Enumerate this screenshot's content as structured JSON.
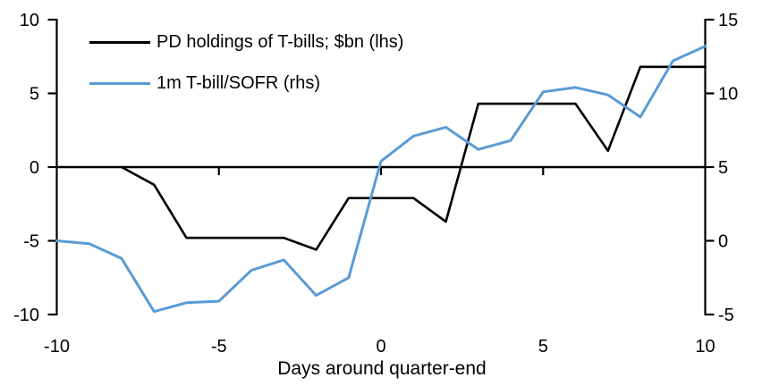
{
  "chart_data": {
    "type": "line",
    "title": "",
    "xlabel": "Days around quarter-end",
    "x": [
      -10,
      -9,
      -8,
      -7,
      -6,
      -5,
      -4,
      -3,
      -2,
      -1,
      0,
      1,
      2,
      3,
      4,
      5,
      6,
      7,
      8,
      9,
      10
    ],
    "x_tick_labels": [
      "-10",
      "-5",
      "0",
      "5",
      "10"
    ],
    "x_tick_values": [
      -10,
      -5,
      0,
      5,
      10
    ],
    "axes": {
      "left": {
        "ylim": [
          -10,
          10
        ],
        "tick_values": [
          10,
          5,
          0,
          -5,
          -10
        ],
        "tick_labels": [
          "10",
          "5",
          "0",
          "-5",
          "-10"
        ]
      },
      "right": {
        "ylim": [
          -5,
          15
        ],
        "tick_values": [
          15,
          10,
          5,
          0,
          -5
        ],
        "tick_labels": [
          "15",
          "10",
          "5",
          "0",
          "-5"
        ]
      }
    },
    "grid": false,
    "zero_line": true,
    "legend_position": "top-left",
    "series": [
      {
        "name": "PD holdings of T-bills; $bn (lhs)",
        "axis": "left",
        "color": "#000000",
        "values": [
          null,
          null,
          0,
          -1.2,
          -4.8,
          -4.8,
          -4.8,
          -4.8,
          -5.6,
          -2.1,
          -2.1,
          -2.1,
          -3.7,
          4.3,
          4.3,
          4.3,
          4.3,
          1.1,
          6.8,
          6.8,
          6.8
        ]
      },
      {
        "name": "1m T-bill/SOFR (rhs)",
        "axis": "right",
        "color": "#5B9BD5",
        "values": [
          0,
          -0.2,
          -1.2,
          -4.8,
          -4.2,
          -4.1,
          -2.0,
          -1.3,
          -3.7,
          -2.5,
          5.4,
          7.1,
          7.7,
          6.2,
          6.8,
          10.1,
          10.4,
          9.9,
          8.4,
          12.2,
          13.2
        ]
      }
    ]
  },
  "colors": {
    "background": "#ffffff",
    "axis": "#000000",
    "text": "#000000",
    "series_blue": "#5B9BD5",
    "series_black": "#000000"
  }
}
